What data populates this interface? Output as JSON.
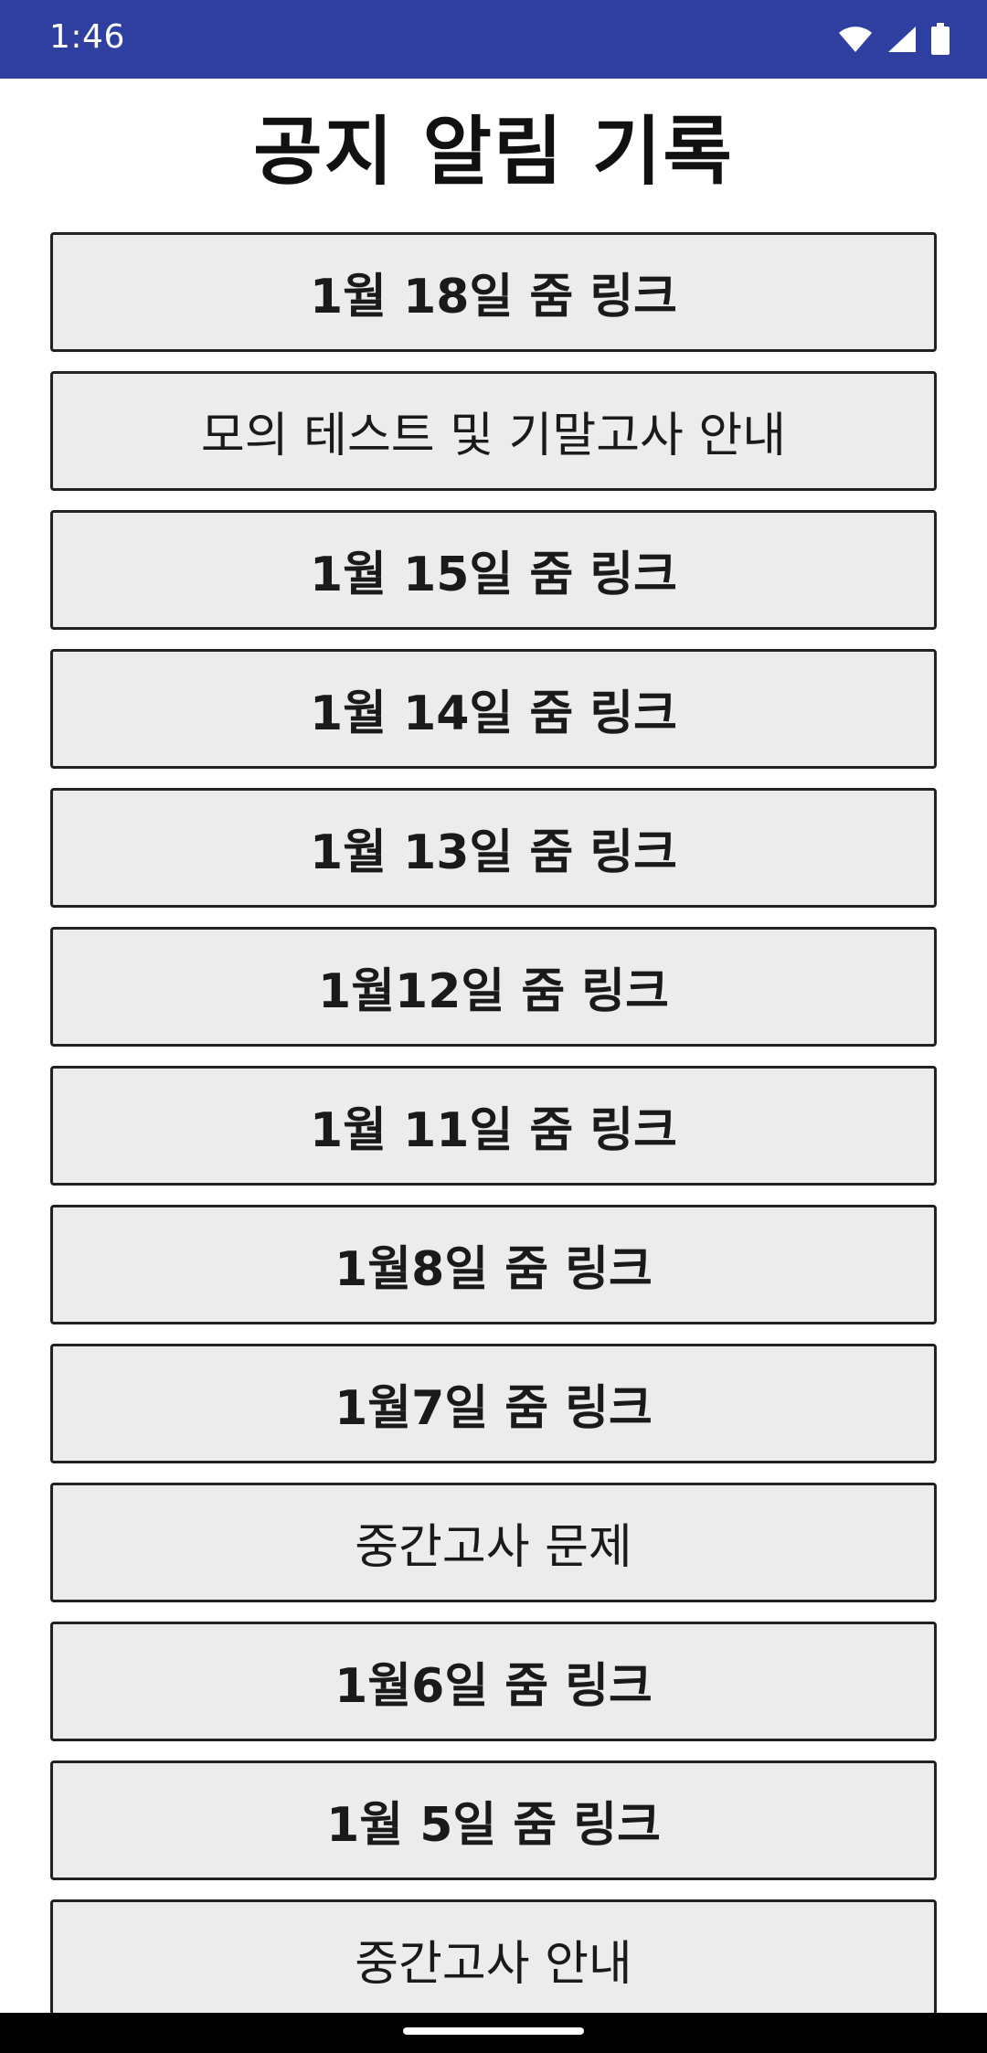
{
  "status_bar": {
    "time": "1:46",
    "icons": [
      "wifi-icon",
      "signal-icon",
      "battery-icon"
    ],
    "background": "#2f3f9f"
  },
  "page": {
    "title": "공지 알림 기록"
  },
  "notices": [
    {
      "label": "1월 18일 줌 링크"
    },
    {
      "label": "모의 테스트 및 기말고사 안내"
    },
    {
      "label": "1월 15일 줌 링크"
    },
    {
      "label": "1월 14일 줌 링크"
    },
    {
      "label": "1월 13일 줌 링크"
    },
    {
      "label": "1월12일 줌 링크"
    },
    {
      "label": "1월 11일 줌 링크"
    },
    {
      "label": "1월8일 줌 링크"
    },
    {
      "label": "1월7일 줌 링크"
    },
    {
      "label": "중간고사 문제"
    },
    {
      "label": "1월6일 줌 링크"
    },
    {
      "label": "1월 5일 줌 링크"
    },
    {
      "label": "중간고사 안내"
    }
  ]
}
